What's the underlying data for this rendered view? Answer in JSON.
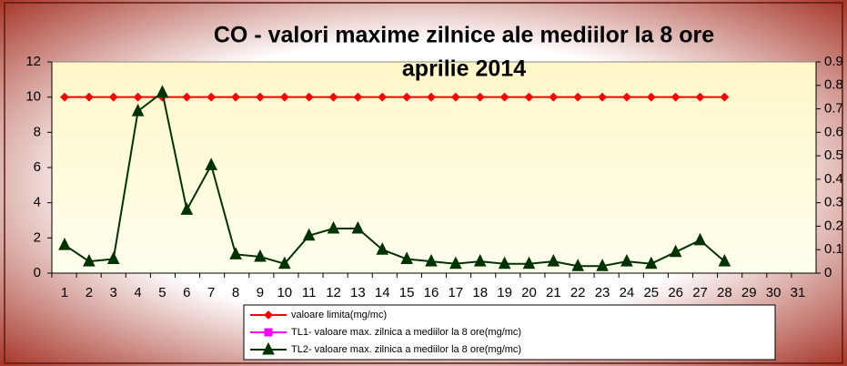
{
  "chart_data": {
    "type": "line",
    "title": "CO - valori maxime zilnice ale mediilor la 8 ore",
    "subtitle": "aprilie 2014",
    "categories": [
      "1",
      "2",
      "3",
      "4",
      "5",
      "6",
      "7",
      "8",
      "9",
      "10",
      "11",
      "12",
      "13",
      "14",
      "15",
      "16",
      "17",
      "18",
      "19",
      "20",
      "21",
      "22",
      "23",
      "24",
      "25",
      "26",
      "27",
      "28",
      "29",
      "30",
      "31"
    ],
    "series": [
      {
        "name": "valoare limita(mg/mc)",
        "color": "#ff0000",
        "marker": "diamond",
        "values": [
          10,
          10,
          10,
          10,
          10,
          10,
          10,
          10,
          10,
          10,
          10,
          10,
          10,
          10,
          10,
          10,
          10,
          10,
          10,
          10,
          10,
          10,
          10,
          10,
          10,
          10,
          10,
          10,
          null,
          null,
          null
        ]
      },
      {
        "name": "TL1- valoare max. zilnica a mediilor la 8 ore(mg/mc)",
        "color": "#ff00ff",
        "marker": "square",
        "values": [
          null,
          null,
          null,
          null,
          null,
          null,
          null,
          null,
          null,
          null,
          null,
          null,
          null,
          null,
          null,
          null,
          null,
          null,
          null,
          null,
          null,
          null,
          null,
          null,
          null,
          null,
          null,
          null,
          null,
          null,
          null
        ]
      },
      {
        "name": "TL2- valoare max. zilnica a mediilor la 8 ore(mg/mc)",
        "color": "#003300",
        "marker": "triangle",
        "axis": "y2",
        "values": [
          0.12,
          0.05,
          0.06,
          0.69,
          0.77,
          0.27,
          0.46,
          0.08,
          0.07,
          0.04,
          0.16,
          0.19,
          0.19,
          0.1,
          0.06,
          0.05,
          0.04,
          0.05,
          0.04,
          0.04,
          0.05,
          0.03,
          0.03,
          0.05,
          0.04,
          0.09,
          0.14,
          0.05,
          null,
          null,
          null
        ]
      }
    ],
    "ylim": [
      0,
      12
    ],
    "yticks": [
      0,
      2,
      4,
      6,
      8,
      10,
      12
    ],
    "y2lim": [
      0,
      0.9
    ],
    "y2ticks": [
      0,
      0.1,
      0.2,
      0.3,
      0.4,
      0.5,
      0.6,
      0.7,
      0.8,
      0.9
    ],
    "grid": false,
    "legend": "bottom"
  }
}
